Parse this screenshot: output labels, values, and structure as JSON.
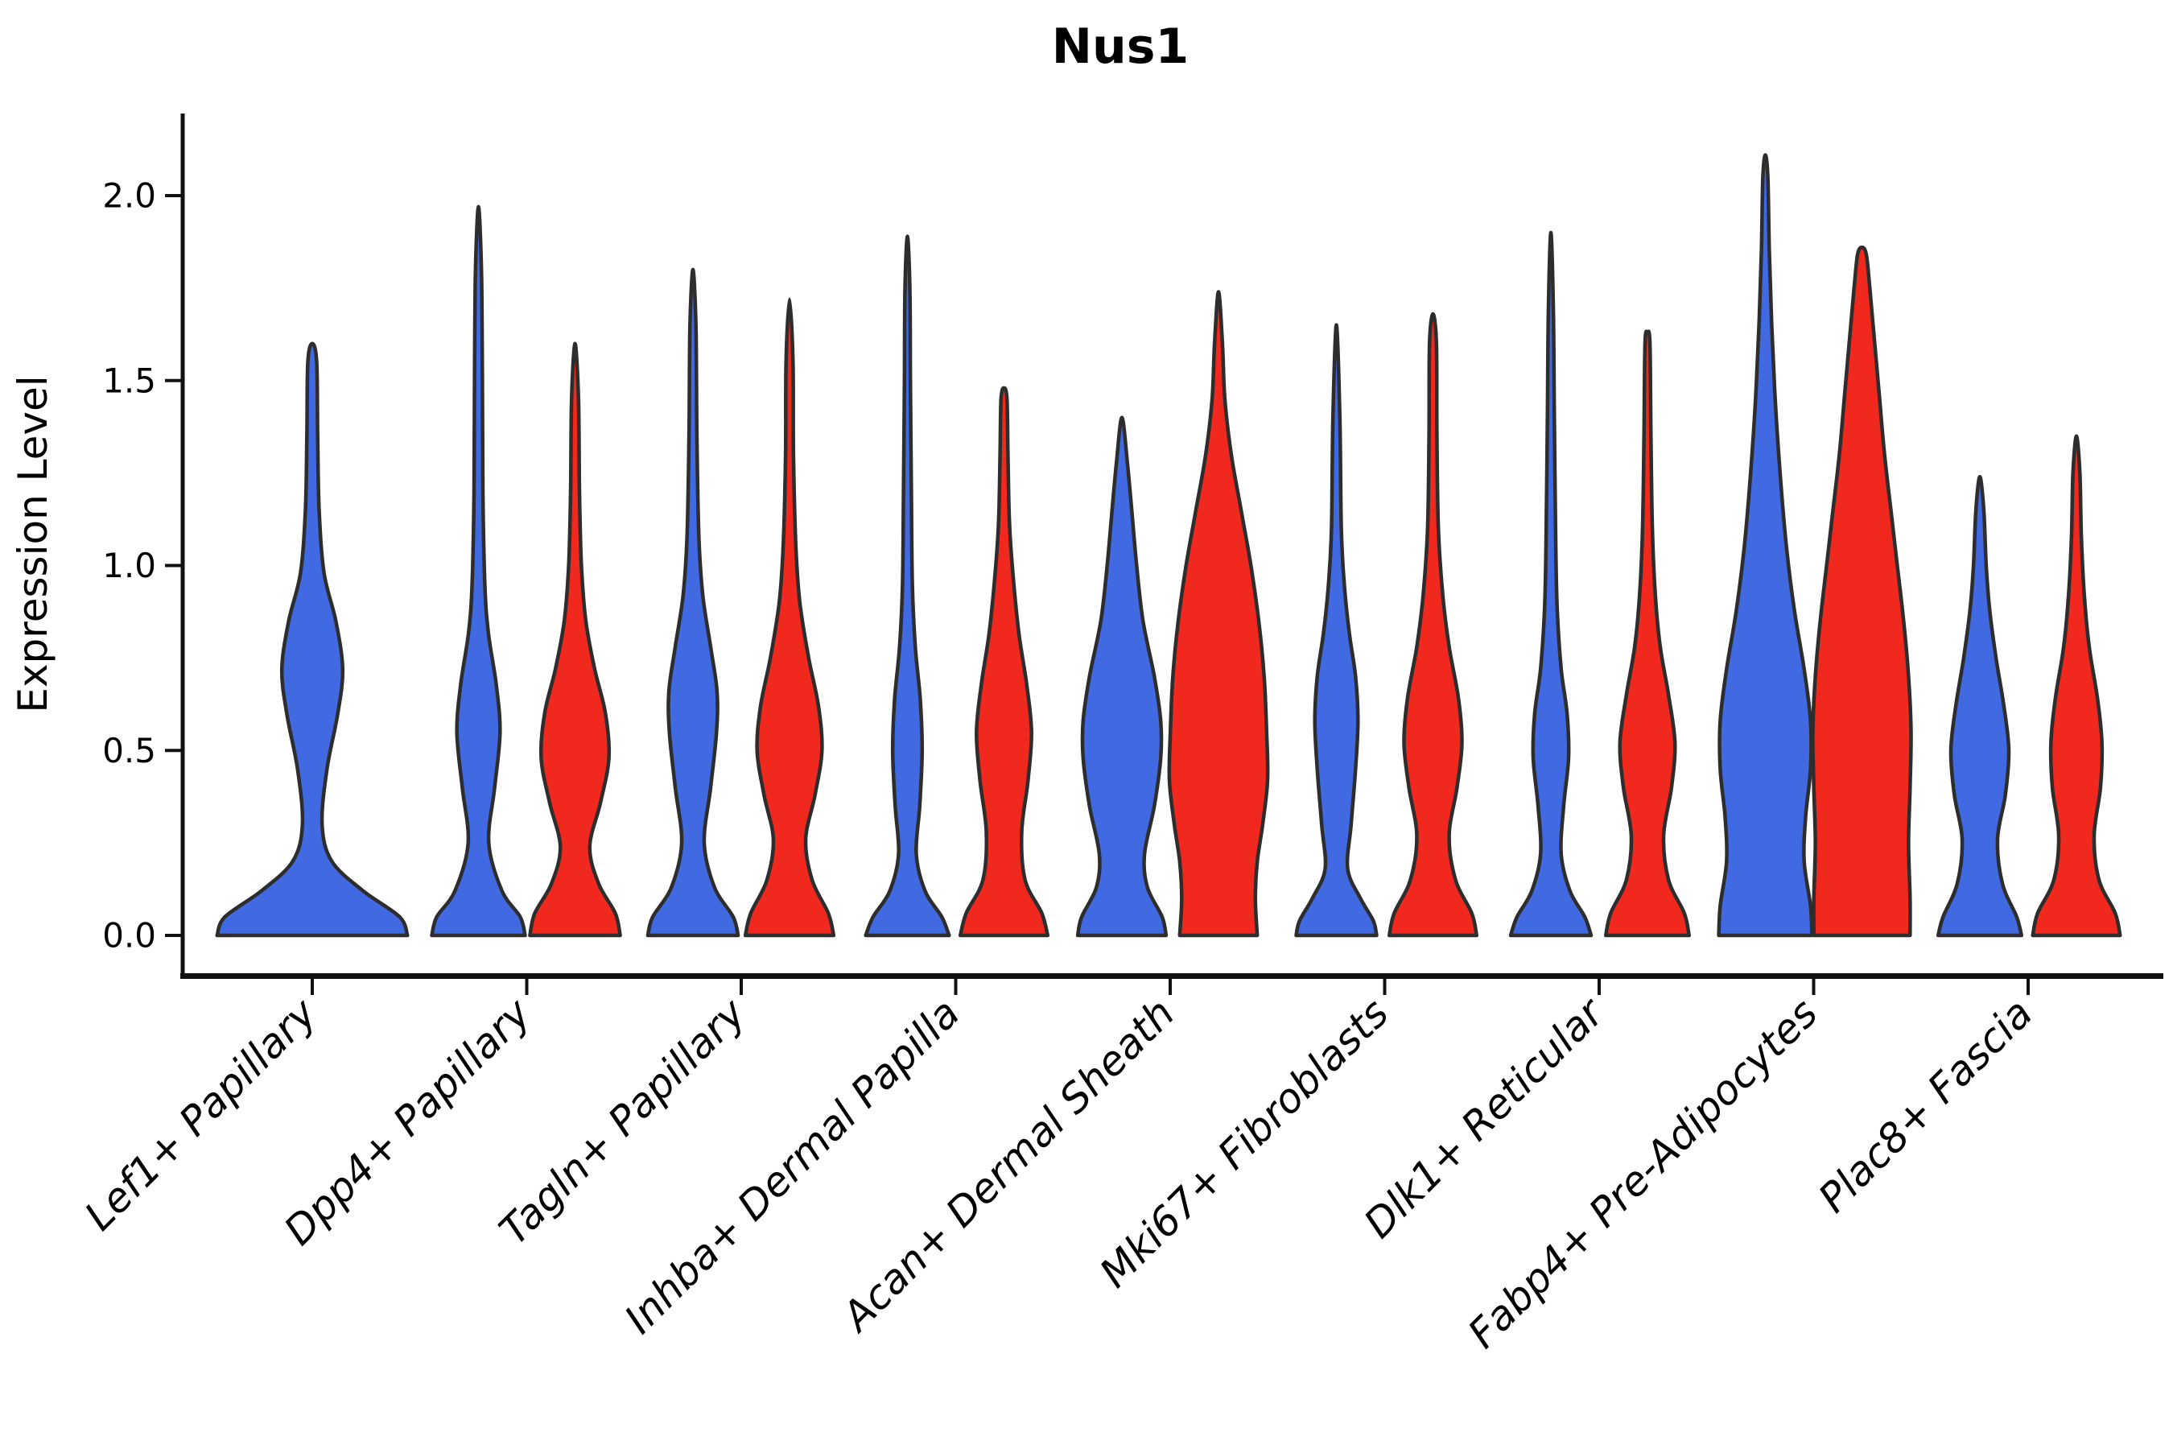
{
  "chart_data": {
    "type": "violin",
    "title": "Nus1",
    "ylabel": "Expression Level",
    "yticks": [
      "0.0",
      "0.5",
      "1.0",
      "1.5",
      "2.0"
    ],
    "ytick_values": [
      0.0,
      0.5,
      1.0,
      1.5,
      2.0
    ],
    "ylim": [
      0.0,
      2.2
    ],
    "grid": false,
    "legend": "none",
    "categories": [
      "Lef1+ Papillary",
      "Dpp4+ Papillary",
      "Tagln+ Papillary",
      "Inhba+ Dermal Papilla",
      "Acan+ Dermal Sheath",
      "Mki67+ Fibroblasts",
      "Dlk1+ Reticular",
      "Fabp4+ Pre-Adipocytes",
      "Plac8+ Fascia"
    ],
    "colors": {
      "blue": "#4169e1",
      "red": "#f0281e",
      "outline": "#2d2d2d",
      "axis": "#111111"
    },
    "violins": [
      {
        "category_index": 0,
        "category": "Lef1+ Papillary",
        "side": "center",
        "color": "blue",
        "max": 1.6,
        "width_scale": 2,
        "profile": [
          [
            0,
            0.97
          ],
          [
            0.05,
            0.89
          ],
          [
            0.12,
            0.52
          ],
          [
            0.2,
            0.2
          ],
          [
            0.3,
            0.1
          ],
          [
            0.45,
            0.15
          ],
          [
            0.6,
            0.26
          ],
          [
            0.72,
            0.31
          ],
          [
            0.85,
            0.24
          ],
          [
            0.98,
            0.12
          ],
          [
            1.15,
            0.07
          ],
          [
            1.35,
            0.055
          ],
          [
            1.55,
            0.045
          ],
          [
            1.6,
            0
          ]
        ]
      },
      {
        "category_index": 1,
        "category": "Dpp4+ Papillary",
        "side": "left",
        "color": "blue",
        "max": 1.97,
        "width_scale": 1,
        "profile": [
          [
            0,
            0.95
          ],
          [
            0.05,
            0.85
          ],
          [
            0.12,
            0.48
          ],
          [
            0.25,
            0.21
          ],
          [
            0.4,
            0.33
          ],
          [
            0.55,
            0.44
          ],
          [
            0.68,
            0.36
          ],
          [
            0.82,
            0.2
          ],
          [
            0.95,
            0.13
          ],
          [
            1.2,
            0.09
          ],
          [
            1.5,
            0.08
          ],
          [
            1.8,
            0.06
          ],
          [
            1.97,
            0
          ]
        ]
      },
      {
        "category_index": 1,
        "category": "Dpp4+ Papillary",
        "side": "right",
        "color": "red",
        "max": 1.6,
        "width_scale": 1,
        "profile": [
          [
            0,
            0.92
          ],
          [
            0.06,
            0.82
          ],
          [
            0.14,
            0.48
          ],
          [
            0.24,
            0.3
          ],
          [
            0.36,
            0.52
          ],
          [
            0.48,
            0.69
          ],
          [
            0.6,
            0.62
          ],
          [
            0.72,
            0.4
          ],
          [
            0.85,
            0.22
          ],
          [
            1.0,
            0.13
          ],
          [
            1.2,
            0.09
          ],
          [
            1.45,
            0.07
          ],
          [
            1.6,
            0
          ]
        ]
      },
      {
        "category_index": 2,
        "category": "Tagln+ Papillary",
        "side": "left",
        "color": "blue",
        "max": 1.8,
        "width_scale": 1,
        "profile": [
          [
            0,
            0.92
          ],
          [
            0.05,
            0.82
          ],
          [
            0.13,
            0.44
          ],
          [
            0.25,
            0.23
          ],
          [
            0.4,
            0.36
          ],
          [
            0.55,
            0.48
          ],
          [
            0.66,
            0.49
          ],
          [
            0.78,
            0.36
          ],
          [
            0.92,
            0.2
          ],
          [
            1.08,
            0.12
          ],
          [
            1.35,
            0.08
          ],
          [
            1.65,
            0.06
          ],
          [
            1.8,
            0
          ]
        ]
      },
      {
        "category_index": 2,
        "category": "Tagln+ Papillary",
        "side": "right",
        "color": "red",
        "max": 1.72,
        "width_scale": 1,
        "profile": [
          [
            0,
            0.9
          ],
          [
            0.06,
            0.79
          ],
          [
            0.15,
            0.46
          ],
          [
            0.26,
            0.33
          ],
          [
            0.38,
            0.52
          ],
          [
            0.5,
            0.66
          ],
          [
            0.62,
            0.59
          ],
          [
            0.75,
            0.39
          ],
          [
            0.9,
            0.21
          ],
          [
            1.05,
            0.13
          ],
          [
            1.3,
            0.08
          ],
          [
            1.55,
            0.07
          ],
          [
            1.72,
            0
          ]
        ]
      },
      {
        "category_index": 3,
        "category": "Inhba+ Dermal Papilla",
        "side": "left",
        "color": "blue",
        "max": 1.89,
        "width_scale": 1,
        "profile": [
          [
            0,
            0.85
          ],
          [
            0.05,
            0.7
          ],
          [
            0.12,
            0.36
          ],
          [
            0.22,
            0.18
          ],
          [
            0.35,
            0.25
          ],
          [
            0.5,
            0.3
          ],
          [
            0.64,
            0.26
          ],
          [
            0.78,
            0.16
          ],
          [
            0.95,
            0.1
          ],
          [
            1.2,
            0.08
          ],
          [
            1.5,
            0.06
          ],
          [
            1.75,
            0.05
          ],
          [
            1.89,
            0
          ]
        ]
      },
      {
        "category_index": 3,
        "category": "Inhba+ Dermal Papilla",
        "side": "right",
        "color": "red",
        "max": 1.48,
        "width_scale": 1,
        "profile": [
          [
            0,
            0.89
          ],
          [
            0.06,
            0.77
          ],
          [
            0.15,
            0.43
          ],
          [
            0.28,
            0.36
          ],
          [
            0.42,
            0.49
          ],
          [
            0.55,
            0.56
          ],
          [
            0.68,
            0.46
          ],
          [
            0.82,
            0.3
          ],
          [
            0.98,
            0.18
          ],
          [
            1.12,
            0.11
          ],
          [
            1.3,
            0.08
          ],
          [
            1.45,
            0.06
          ],
          [
            1.48,
            0
          ]
        ]
      },
      {
        "category_index": 4,
        "category": "Acan+ Dermal Sheath",
        "side": "left",
        "color": "blue",
        "max": 1.4,
        "width_scale": 1,
        "profile": [
          [
            0,
            0.9
          ],
          [
            0.05,
            0.82
          ],
          [
            0.13,
            0.52
          ],
          [
            0.22,
            0.46
          ],
          [
            0.35,
            0.66
          ],
          [
            0.48,
            0.79
          ],
          [
            0.58,
            0.79
          ],
          [
            0.7,
            0.66
          ],
          [
            0.85,
            0.43
          ],
          [
            1.0,
            0.3
          ],
          [
            1.15,
            0.2
          ],
          [
            1.28,
            0.11
          ],
          [
            1.4,
            0
          ]
        ]
      },
      {
        "category_index": 4,
        "category": "Acan+ Dermal Sheath",
        "side": "right",
        "color": "red",
        "max": 1.74,
        "width_scale": 1,
        "profile": [
          [
            0,
            0.79
          ],
          [
            0.1,
            0.75
          ],
          [
            0.2,
            0.79
          ],
          [
            0.3,
            0.9
          ],
          [
            0.42,
            1.0
          ],
          [
            0.55,
            0.98
          ],
          [
            0.7,
            0.93
          ],
          [
            0.85,
            0.82
          ],
          [
            1.0,
            0.66
          ],
          [
            1.15,
            0.46
          ],
          [
            1.3,
            0.26
          ],
          [
            1.45,
            0.13
          ],
          [
            1.6,
            0.08
          ],
          [
            1.74,
            0
          ]
        ]
      },
      {
        "category_index": 5,
        "category": "Mki67+ Fibroblasts",
        "side": "left",
        "color": "blue",
        "max": 1.65,
        "width_scale": 1,
        "profile": [
          [
            0,
            0.82
          ],
          [
            0.04,
            0.75
          ],
          [
            0.1,
            0.49
          ],
          [
            0.18,
            0.23
          ],
          [
            0.3,
            0.3
          ],
          [
            0.45,
            0.39
          ],
          [
            0.58,
            0.44
          ],
          [
            0.7,
            0.39
          ],
          [
            0.82,
            0.26
          ],
          [
            0.95,
            0.16
          ],
          [
            1.1,
            0.1
          ],
          [
            1.4,
            0.07
          ],
          [
            1.65,
            0
          ]
        ]
      },
      {
        "category_index": 5,
        "category": "Mki67+ Fibroblasts",
        "side": "right",
        "color": "red",
        "max": 1.68,
        "width_scale": 1,
        "profile": [
          [
            0,
            0.89
          ],
          [
            0.06,
            0.79
          ],
          [
            0.15,
            0.46
          ],
          [
            0.27,
            0.33
          ],
          [
            0.4,
            0.49
          ],
          [
            0.52,
            0.59
          ],
          [
            0.64,
            0.52
          ],
          [
            0.78,
            0.33
          ],
          [
            0.92,
            0.2
          ],
          [
            1.1,
            0.11
          ],
          [
            1.35,
            0.08
          ],
          [
            1.6,
            0.07
          ],
          [
            1.68,
            0
          ]
        ]
      },
      {
        "category_index": 6,
        "category": "Dlk1+ Reticular",
        "side": "left",
        "color": "blue",
        "max": 1.9,
        "width_scale": 1,
        "profile": [
          [
            0,
            0.82
          ],
          [
            0.05,
            0.69
          ],
          [
            0.12,
            0.39
          ],
          [
            0.22,
            0.21
          ],
          [
            0.35,
            0.26
          ],
          [
            0.48,
            0.36
          ],
          [
            0.6,
            0.33
          ],
          [
            0.72,
            0.21
          ],
          [
            0.88,
            0.13
          ],
          [
            1.05,
            0.1
          ],
          [
            1.4,
            0.07
          ],
          [
            1.7,
            0.05
          ],
          [
            1.9,
            0
          ]
        ]
      },
      {
        "category_index": 6,
        "category": "Dlk1+ Reticular",
        "side": "right",
        "color": "red",
        "max": 1.63,
        "width_scale": 1,
        "profile": [
          [
            0,
            0.85
          ],
          [
            0.06,
            0.75
          ],
          [
            0.15,
            0.43
          ],
          [
            0.27,
            0.33
          ],
          [
            0.4,
            0.49
          ],
          [
            0.52,
            0.56
          ],
          [
            0.65,
            0.43
          ],
          [
            0.78,
            0.26
          ],
          [
            0.92,
            0.16
          ],
          [
            1.1,
            0.1
          ],
          [
            1.35,
            0.07
          ],
          [
            1.6,
            0.05
          ],
          [
            1.63,
            0
          ]
        ]
      },
      {
        "category_index": 7,
        "category": "Fabp4+ Pre-Adipocytes",
        "side": "left",
        "color": "blue",
        "max": 2.11,
        "width_scale": 1,
        "profile": [
          [
            0,
            0.95
          ],
          [
            0.08,
            0.92
          ],
          [
            0.2,
            0.79
          ],
          [
            0.32,
            0.82
          ],
          [
            0.45,
            0.92
          ],
          [
            0.58,
            0.92
          ],
          [
            0.72,
            0.79
          ],
          [
            0.88,
            0.59
          ],
          [
            1.05,
            0.43
          ],
          [
            1.25,
            0.3
          ],
          [
            1.45,
            0.2
          ],
          [
            1.65,
            0.13
          ],
          [
            1.85,
            0.08
          ],
          [
            2.05,
            0.05
          ],
          [
            2.11,
            0
          ]
        ]
      },
      {
        "category_index": 7,
        "category": "Fabp4+ Pre-Adipocytes",
        "side": "right",
        "color": "red",
        "max": 1.86,
        "width_scale": 1,
        "profile": [
          [
            0,
            0.98
          ],
          [
            0.1,
            0.98
          ],
          [
            0.25,
            0.95
          ],
          [
            0.4,
            0.98
          ],
          [
            0.55,
            1.0
          ],
          [
            0.7,
            0.95
          ],
          [
            0.85,
            0.85
          ],
          [
            1.0,
            0.72
          ],
          [
            1.15,
            0.59
          ],
          [
            1.3,
            0.46
          ],
          [
            1.45,
            0.36
          ],
          [
            1.6,
            0.26
          ],
          [
            1.75,
            0.16
          ],
          [
            1.84,
            0.09
          ],
          [
            1.86,
            0
          ]
        ]
      },
      {
        "category_index": 8,
        "category": "Plac8+ Fascia",
        "side": "left",
        "color": "blue",
        "max": 1.24,
        "width_scale": 1,
        "profile": [
          [
            0,
            0.85
          ],
          [
            0.05,
            0.75
          ],
          [
            0.14,
            0.46
          ],
          [
            0.26,
            0.36
          ],
          [
            0.38,
            0.52
          ],
          [
            0.5,
            0.59
          ],
          [
            0.62,
            0.49
          ],
          [
            0.75,
            0.33
          ],
          [
            0.88,
            0.2
          ],
          [
            1.0,
            0.13
          ],
          [
            1.15,
            0.08
          ],
          [
            1.24,
            0
          ]
        ]
      },
      {
        "category_index": 8,
        "category": "Plac8+ Fascia",
        "side": "right",
        "color": "red",
        "max": 1.35,
        "width_scale": 1,
        "profile": [
          [
            0,
            0.89
          ],
          [
            0.06,
            0.79
          ],
          [
            0.15,
            0.46
          ],
          [
            0.27,
            0.36
          ],
          [
            0.4,
            0.49
          ],
          [
            0.52,
            0.52
          ],
          [
            0.64,
            0.43
          ],
          [
            0.78,
            0.26
          ],
          [
            0.92,
            0.16
          ],
          [
            1.08,
            0.1
          ],
          [
            1.25,
            0.07
          ],
          [
            1.35,
            0
          ]
        ]
      }
    ]
  }
}
